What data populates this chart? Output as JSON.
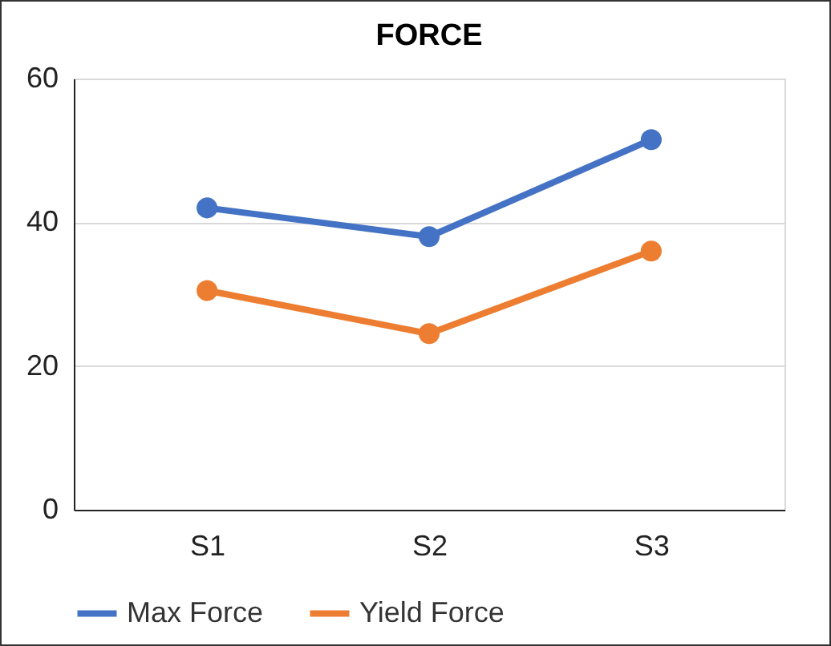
{
  "chart_data": {
    "type": "line",
    "title": "FORCE",
    "categories": [
      "S1",
      "S2",
      "S3"
    ],
    "series": [
      {
        "name": "Max Force",
        "color": "#4472c4",
        "values": [
          42,
          38,
          51.5
        ]
      },
      {
        "name": "Yield Force",
        "color": "#ed7d31",
        "values": [
          30.5,
          24.5,
          36
        ]
      }
    ],
    "ylim": [
      0,
      60
    ],
    "yticks": [
      0,
      20,
      40,
      60
    ],
    "grid": "y",
    "legend": "bottom",
    "marker": "circle",
    "line_style": "solid"
  }
}
